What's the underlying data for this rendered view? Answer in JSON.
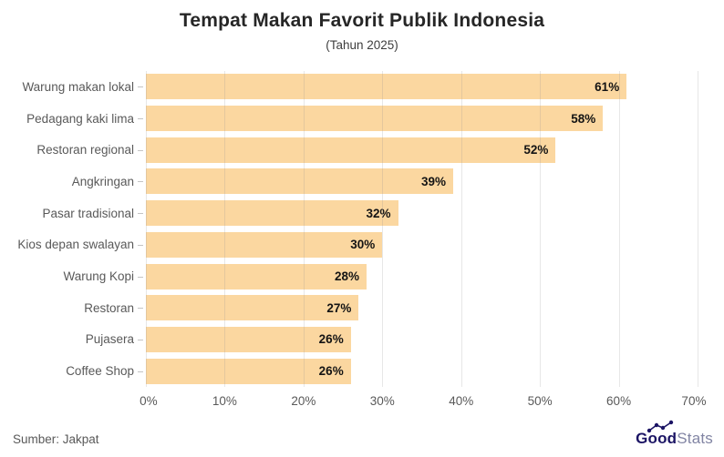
{
  "title": "Tempat Makan Favorit Publik Indonesia",
  "subtitle": "(Tahun 2025)",
  "source": "Sumber: Jakpat",
  "logo": {
    "bold": "Good",
    "light": "Stats"
  },
  "colors": {
    "bar": "#FBD7A0",
    "grid": "rgba(145,145,145,0.22)",
    "title": "#262626",
    "category_label": "#595959",
    "value_label": "#141414",
    "axis_label": "#595959",
    "logo_navy": "#1b1464",
    "logo_gray": "#8184a3"
  },
  "chart_data": {
    "type": "bar",
    "orientation": "horizontal",
    "title": "Tempat Makan Favorit Publik Indonesia",
    "subtitle": "(Tahun 2025)",
    "categories": [
      "Warung makan lokal",
      "Pedagang kaki lima",
      "Restoran regional",
      "Angkringan",
      "Pasar tradisional",
      "Kios depan swalayan",
      "Warung Kopi",
      "Restoran",
      "Pujasera",
      "Coffee Shop"
    ],
    "values": [
      61,
      58,
      52,
      39,
      32,
      30,
      28,
      27,
      26,
      26
    ],
    "value_suffix": "%",
    "xlim": [
      0,
      70
    ],
    "x_ticks": [
      0,
      10,
      20,
      30,
      40,
      50,
      60,
      70
    ],
    "x_tick_labels": [
      "0%",
      "10%",
      "20%",
      "30%",
      "40%",
      "50%",
      "60%",
      "70%"
    ],
    "grid": true,
    "legend": false,
    "bar_color": "#FBD7A0"
  }
}
